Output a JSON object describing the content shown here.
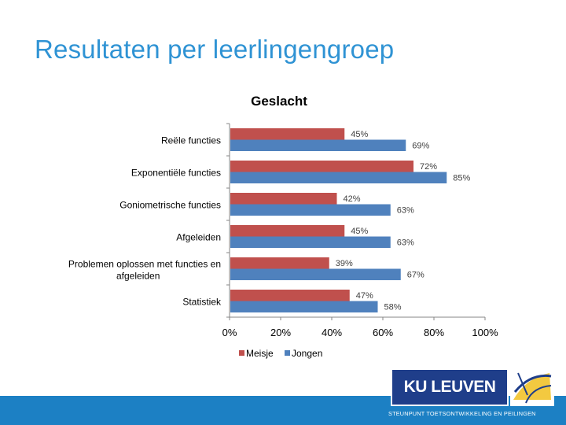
{
  "slide": {
    "title": "Resultaten per leerlingengroep"
  },
  "chart_data": {
    "type": "bar",
    "orientation": "horizontal",
    "title": "Geslacht",
    "categories": [
      "Reële functies",
      "Exponentiële functies",
      "Goniometrische functies",
      "Afgeleiden",
      "Problemen oplossen met functies en afgeleiden",
      "Statistiek"
    ],
    "category_lines": [
      [
        "Reële functies"
      ],
      [
        "Exponentiële functies"
      ],
      [
        "Goniometrische functies"
      ],
      [
        "Afgeleiden"
      ],
      [
        "Problemen oplossen met functies en",
        "afgeleiden"
      ],
      [
        "Statistiek"
      ]
    ],
    "series": [
      {
        "name": "Meisje",
        "color": "#c0504d",
        "values": [
          45,
          72,
          42,
          45,
          39,
          47
        ],
        "labels": [
          "45%",
          "72%",
          "42%",
          "45%",
          "39%",
          "47%"
        ]
      },
      {
        "name": "Jongen",
        "color": "#4f81bd",
        "values": [
          69,
          85,
          63,
          63,
          67,
          58
        ],
        "labels": [
          "69%",
          "85%",
          "63%",
          "63%",
          "67%",
          "58%"
        ]
      }
    ],
    "xlim": [
      0,
      100
    ],
    "xticks": [
      0,
      20,
      40,
      60,
      80,
      100
    ],
    "xtick_labels": [
      "0%",
      "20%",
      "40%",
      "60%",
      "80%",
      "100%"
    ],
    "xlabel": "",
    "ylabel": "",
    "grid": false,
    "legend_position": "bottom"
  },
  "branding": {
    "logo_text": "KU LEUVEN",
    "footer_text": "STEUNPUNT TOETSONTWIKKELING EN PEILINGEN",
    "band_color": "#1c80c4",
    "logo_color": "#1f3e8a"
  }
}
